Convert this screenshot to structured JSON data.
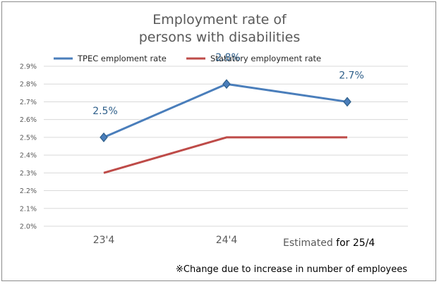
{
  "chart_data": {
    "type": "line",
    "title_line1": "Employment rate of",
    "title_line2": "persons with disabilities",
    "categories": [
      "23'4",
      "24'4",
      "Estimated for 25/4"
    ],
    "category_prefix_3": "Estimated",
    "category_suffix_3": " for 25/4",
    "series": [
      {
        "name": "TPEC emploment rate",
        "values": [
          2.5,
          2.8,
          2.7
        ],
        "labels": [
          "2.5%",
          "2.8%",
          "2.7%"
        ],
        "color": "#4a7ebb",
        "marker": "diamond"
      },
      {
        "name": "Statutory employment rate",
        "values": [
          2.3,
          2.5,
          2.5
        ],
        "color": "#be4b48"
      }
    ],
    "ylim": [
      2.0,
      2.9
    ],
    "yticks": [
      "2.0%",
      "2.1%",
      "2.2%",
      "2.3%",
      "2.4%",
      "2.5%",
      "2.6%",
      "2.7%",
      "2.8%",
      "2.9%"
    ],
    "grid": true,
    "legend_position": "top",
    "note": "※Change due to increase in number of employees"
  }
}
